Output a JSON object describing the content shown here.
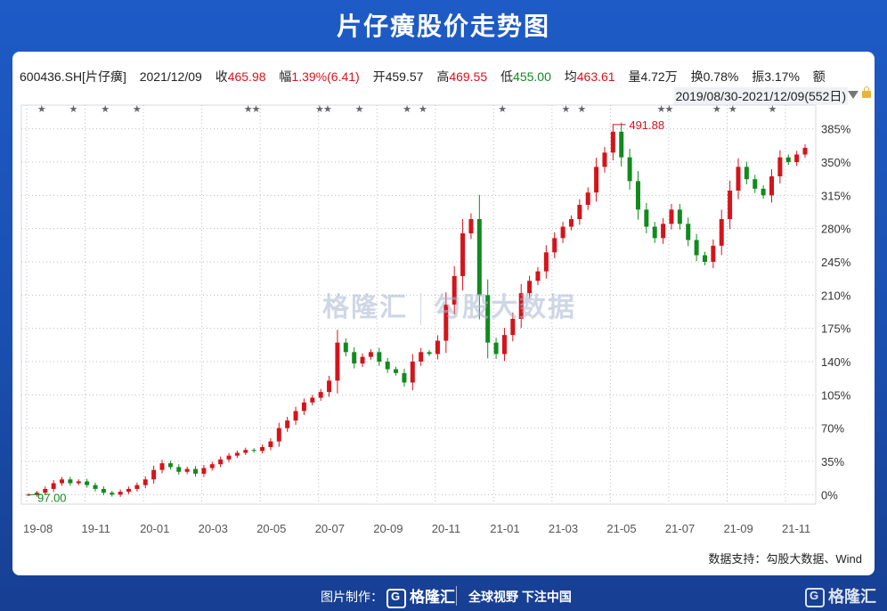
{
  "page_title": "片仔癀股价走势图",
  "info": {
    "code": "600436.SH[片仔癀]",
    "date": "2021/12/09",
    "close_label": "收",
    "close": "465.98",
    "change_label": "幅",
    "change": "1.39%(6.41)",
    "open_label": "开",
    "open": "459.57",
    "high_label": "高",
    "high": "469.55",
    "low_label": "低",
    "low": "455.00",
    "avg_label": "均",
    "avg": "463.61",
    "vol_label": "量",
    "vol": "4.72万",
    "turnover_label": "换",
    "turnover": "0.78%",
    "amplitude_label": "振",
    "amplitude": "3.17%",
    "amount_label": "额"
  },
  "range_text": "2019/08/30-2021/12/09(552日)",
  "watermark": {
    "left": "格隆汇",
    "right": "勾股大数据"
  },
  "source": "数据支持：勾股大数据、Wind",
  "footer": {
    "made_by": "图片制作：",
    "logo": "格隆汇",
    "slogan": "全球视野 下注中国",
    "corner_logo": "格隆汇"
  },
  "colors": {
    "up": "#d4141b",
    "down": "#128a1e",
    "grid": "#b8bec8",
    "axis_text": "#333333",
    "header_bg": "#1e5bc6"
  },
  "chart_data": {
    "type": "line",
    "subtype": "candlestick",
    "title": "片仔癀股价走势图",
    "y_scale": "percent_change",
    "ylim": [
      -10,
      410
    ],
    "yticks": [
      "385%",
      "350%",
      "315%",
      "280%",
      "245%",
      "210%",
      "175%",
      "140%",
      "105%",
      "70%",
      "35%",
      "0%"
    ],
    "ytick_values": [
      385,
      350,
      315,
      280,
      245,
      210,
      175,
      140,
      105,
      70,
      35,
      0
    ],
    "xticks": [
      "19-08",
      "19-11",
      "20-01",
      "20-03",
      "20-05",
      "20-07",
      "20-09",
      "20-11",
      "21-01",
      "21-03",
      "21-05",
      "21-07",
      "21-09",
      "21-11"
    ],
    "annotations": [
      {
        "label": "97.00",
        "type": "low",
        "date": "19-08"
      },
      {
        "label": "491.88",
        "type": "high",
        "date": "21-07"
      }
    ],
    "series": [
      {
        "values_pct": [
          0,
          2,
          6,
          12,
          16,
          12,
          14,
          10,
          6,
          2,
          0,
          3,
          6,
          10,
          16,
          26,
          33,
          29,
          24,
          27,
          22,
          28,
          32,
          37,
          41,
          44,
          47,
          46,
          50,
          56,
          70,
          78,
          88,
          97,
          102,
          108,
          120,
          160,
          150,
          138,
          145,
          150,
          140,
          132,
          128,
          118,
          140,
          150,
          148,
          162,
          200,
          230,
          275,
          290,
          210,
          160,
          148,
          168,
          185,
          212,
          225,
          235,
          255,
          270,
          282,
          290,
          305,
          318,
          345,
          360,
          382,
          355,
          330,
          300,
          282,
          270,
          285,
          300,
          285,
          268,
          252,
          245,
          262,
          290,
          320,
          345,
          332,
          322,
          315,
          335,
          355,
          350,
          358,
          365
        ]
      }
    ],
    "grid": true,
    "legend": "none"
  }
}
